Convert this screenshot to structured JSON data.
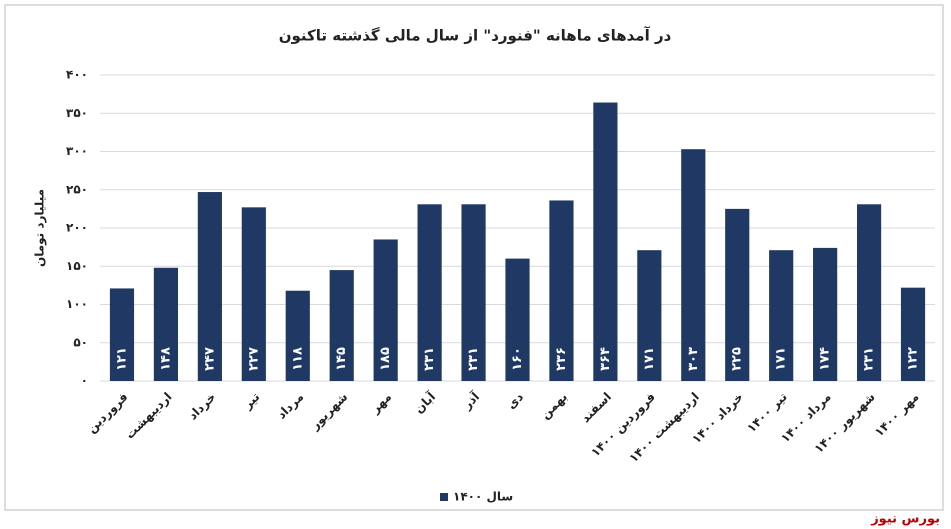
{
  "chart_data": {
    "type": "bar",
    "title": "در آمدهای ماهانه \"فنورد\" از سال مالی گذشته تاکنون",
    "y_label": "میلیارد تومان",
    "source": "بورس نیوز",
    "categories": [
      "فروردین",
      "اردیبهشت",
      "خرداد",
      "تیر",
      "مرداد",
      "شهریور",
      "مهر",
      "آبان",
      "آذر",
      "دی",
      "بهمن",
      "اسفند",
      "فروردین ۱۴۰۰",
      "اردیبهشت ۱۴۰۰",
      "خرداد ۱۴۰۰",
      "تیر ۱۴۰۰",
      "مرداد ۱۴۰۰",
      "شهریور ۱۴۰۰",
      "مهر ۱۴۰۰"
    ],
    "series": [
      {
        "name": "سال ۱۴۰۰",
        "color": "#203864",
        "values": [
          121,
          148,
          247,
          227,
          118,
          145,
          185,
          231,
          231,
          160,
          236,
          364,
          171,
          303,
          225,
          171,
          174,
          231,
          122
        ],
        "value_labels": [
          "۱۲۱",
          "۱۴۸",
          "۲۴۷",
          "۲۲۷",
          "۱۱۸",
          "۱۴۵",
          "۱۸۵",
          "۲۳۱",
          "۲۳۱",
          "۱۶۰",
          "۲۳۶",
          "۳۶۴",
          "۱۷۱",
          "۳۰۳",
          "۲۲۵",
          "۱۷۱",
          "۱۷۴",
          "۲۳۱",
          "۱۲۲"
        ]
      }
    ],
    "ylim": [
      0,
      400
    ],
    "yticks": [
      {
        "value": 0,
        "label": "۰"
      },
      {
        "value": 50,
        "label": "۵۰"
      },
      {
        "value": 100,
        "label": "۱۰۰"
      },
      {
        "value": 150,
        "label": "۱۵۰"
      },
      {
        "value": 200,
        "label": "۲۰۰"
      },
      {
        "value": 250,
        "label": "۲۵۰"
      },
      {
        "value": 300,
        "label": "۳۰۰"
      },
      {
        "value": 350,
        "label": "۳۵۰"
      },
      {
        "value": 400,
        "label": "۴۰۰"
      }
    ],
    "grid": true,
    "legend": "bottom"
  }
}
